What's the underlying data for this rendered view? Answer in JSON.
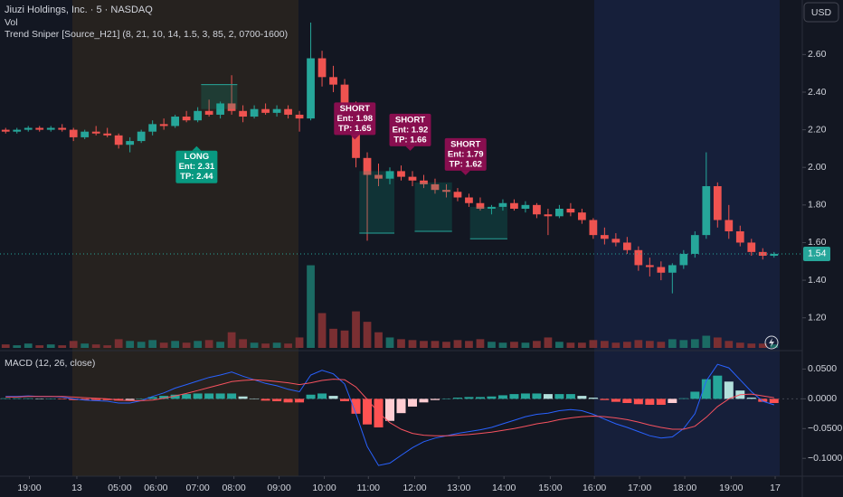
{
  "chart_data": [
    {
      "type": "candlestick",
      "title": "Jiuzi Holdings, Inc. · 5 · NASDAQ",
      "legend_texts": [
        "Vol",
        "Trend Sniper [Source_H21] (8, 21, 10, 14, 1.5, 3, 85, 2, 0700-1600)"
      ],
      "currency": "USD",
      "up_color": "#26a69a",
      "down_color": "#ef5350",
      "xlim": [
        -0.5,
        70.5
      ],
      "xticks": [
        {
          "value": 2.1,
          "label": "19:00"
        },
        {
          "value": 6.3,
          "label": "13"
        },
        {
          "value": 10.1,
          "label": "05:00"
        },
        {
          "value": 13.3,
          "label": "06:00"
        },
        {
          "value": 17.0,
          "label": "07:00"
        },
        {
          "value": 20.2,
          "label": "08:00"
        },
        {
          "value": 24.2,
          "label": "09:00"
        },
        {
          "value": 28.2,
          "label": "10:00"
        },
        {
          "value": 32.1,
          "label": "11:00"
        },
        {
          "value": 36.2,
          "label": "12:00"
        },
        {
          "value": 40.1,
          "label": "13:00"
        },
        {
          "value": 44.1,
          "label": "14:00"
        },
        {
          "value": 48.2,
          "label": "15:00"
        },
        {
          "value": 52.1,
          "label": "16:00"
        },
        {
          "value": 56.1,
          "label": "17:00"
        },
        {
          "value": 60.1,
          "label": "18:00"
        },
        {
          "value": 64.2,
          "label": "19:00"
        },
        {
          "value": 68.1,
          "label": "17"
        }
      ],
      "ylim": [
        1.04,
        2.89
      ],
      "yticks": [
        {
          "value": 2.6,
          "label": "2.60"
        },
        {
          "value": 2.4,
          "label": "2.40"
        },
        {
          "value": 2.2,
          "label": "2.20"
        },
        {
          "value": 2.0,
          "label": "2.00"
        },
        {
          "value": 1.8,
          "label": "1.80"
        },
        {
          "value": 1.6,
          "label": "1.60"
        },
        {
          "value": 1.4,
          "label": "1.40"
        },
        {
          "value": 1.2,
          "label": "1.20"
        }
      ],
      "open": [
        2.2,
        2.19,
        2.2,
        2.21,
        2.2,
        2.21,
        2.2,
        2.16,
        2.19,
        2.18,
        2.17,
        2.12,
        2.14,
        2.19,
        2.23,
        2.22,
        2.27,
        2.25,
        2.3,
        2.28,
        2.34,
        2.3,
        2.27,
        2.31,
        2.29,
        2.31,
        2.28,
        2.26,
        2.58,
        2.48,
        2.44,
        2.33,
        2.05,
        1.96,
        1.94,
        1.98,
        1.95,
        1.93,
        1.91,
        1.88,
        1.87,
        1.84,
        1.81,
        1.78,
        1.79,
        1.81,
        1.78,
        1.8,
        1.75,
        1.74,
        1.78,
        1.76,
        1.72,
        1.64,
        1.62,
        1.6,
        1.56,
        1.48,
        1.47,
        1.44,
        1.48,
        1.54,
        1.64,
        1.9,
        1.72,
        1.66,
        1.6,
        1.55,
        1.53
      ],
      "high": [
        2.21,
        2.21,
        2.22,
        2.22,
        2.22,
        2.23,
        2.21,
        2.2,
        2.22,
        2.21,
        2.18,
        2.16,
        2.2,
        2.25,
        2.26,
        2.28,
        2.3,
        2.32,
        2.36,
        2.35,
        2.49,
        2.33,
        2.33,
        2.34,
        2.33,
        2.33,
        2.3,
        2.77,
        2.62,
        2.54,
        2.47,
        2.35,
        2.08,
        2.02,
        2.0,
        2.01,
        1.98,
        1.96,
        1.94,
        1.91,
        1.89,
        1.86,
        1.84,
        1.8,
        1.83,
        1.83,
        1.82,
        1.81,
        1.78,
        1.8,
        1.81,
        1.78,
        1.73,
        1.68,
        1.65,
        1.63,
        1.58,
        1.52,
        1.5,
        1.49,
        1.56,
        1.66,
        2.08,
        1.92,
        1.8,
        1.69,
        1.62,
        1.57,
        1.55
      ],
      "low": [
        2.18,
        2.18,
        2.19,
        2.19,
        2.19,
        2.19,
        2.14,
        2.15,
        2.17,
        2.16,
        2.1,
        2.08,
        2.13,
        2.17,
        2.2,
        2.21,
        2.24,
        2.24,
        2.27,
        2.26,
        2.28,
        2.24,
        2.26,
        2.28,
        2.27,
        2.26,
        2.19,
        2.25,
        2.43,
        2.4,
        2.3,
        2.0,
        1.61,
        1.9,
        1.91,
        1.93,
        1.9,
        1.89,
        1.86,
        1.84,
        1.82,
        1.79,
        1.77,
        1.75,
        1.77,
        1.77,
        1.76,
        1.73,
        1.64,
        1.73,
        1.74,
        1.7,
        1.62,
        1.59,
        1.58,
        1.54,
        1.45,
        1.42,
        1.4,
        1.33,
        1.46,
        1.52,
        1.62,
        1.68,
        1.62,
        1.58,
        1.53,
        1.51,
        1.52
      ],
      "close": [
        2.19,
        2.2,
        2.21,
        2.2,
        2.21,
        2.2,
        2.16,
        2.19,
        2.18,
        2.17,
        2.12,
        2.14,
        2.19,
        2.23,
        2.22,
        2.27,
        2.25,
        2.3,
        2.28,
        2.34,
        2.3,
        2.27,
        2.31,
        2.29,
        2.31,
        2.28,
        2.26,
        2.58,
        2.48,
        2.44,
        2.33,
        2.05,
        1.96,
        1.94,
        1.98,
        1.95,
        1.93,
        1.91,
        1.88,
        1.87,
        1.84,
        1.81,
        1.78,
        1.79,
        1.81,
        1.78,
        1.8,
        1.75,
        1.74,
        1.78,
        1.76,
        1.72,
        1.64,
        1.62,
        1.6,
        1.56,
        1.48,
        1.47,
        1.44,
        1.48,
        1.54,
        1.64,
        1.9,
        1.72,
        1.66,
        1.6,
        1.55,
        1.53,
        1.54
      ],
      "signals": [
        {
          "label": "LONG",
          "entry_text": "Ent: 2.31",
          "tp_text": "TP: 2.44",
          "entry": 2.31,
          "tp": 2.44,
          "x": [
            17.3,
            20.5
          ],
          "color": "#089981"
        },
        {
          "label": "SHORT",
          "entry_text": "Ent: 1.98",
          "tp_text": "TP: 1.65",
          "entry": 1.98,
          "tp": 1.65,
          "x": [
            31.3,
            34.4
          ],
          "color": "#880e4f"
        },
        {
          "label": "SHORT",
          "entry_text": "Ent: 1.92",
          "tp_text": "TP: 1.66",
          "entry": 1.92,
          "tp": 1.66,
          "x": [
            36.2,
            39.5
          ],
          "color": "#880e4f"
        },
        {
          "label": "SHORT",
          "entry_text": "Ent: 1.79",
          "tp_text": "TP: 1.62",
          "entry": 1.79,
          "tp": 1.62,
          "x": [
            41.1,
            44.4
          ],
          "color": "#880e4f"
        }
      ]
    },
    {
      "type": "bar",
      "up_color": "#1b6b64",
      "down_color": "#7a2f32",
      "ylim": [
        0,
        400
      ],
      "values": [
        4,
        3,
        5,
        3,
        4,
        3,
        8,
        5,
        4,
        3,
        10,
        8,
        7,
        9,
        6,
        8,
        6,
        8,
        9,
        7,
        18,
        10,
        6,
        5,
        6,
        5,
        12,
        95,
        40,
        22,
        20,
        42,
        30,
        18,
        12,
        10,
        9,
        8,
        8,
        7,
        9,
        8,
        10,
        7,
        6,
        7,
        6,
        8,
        12,
        7,
        6,
        6,
        9,
        8,
        6,
        7,
        9,
        8,
        7,
        10,
        9,
        10,
        14,
        12,
        8,
        6,
        5,
        5,
        4
      ]
    },
    {
      "type": "macd",
      "title": "MACD (12, 26, close)",
      "macd_color": "#2962ff",
      "signal_color": "#f7525f",
      "hist_colors": {
        "pos_up": "#26a69a",
        "pos_down": "#b2dfdb",
        "neg_down": "#ff5252",
        "neg_up": "#ffcdd2"
      },
      "ylim": [
        -0.13,
        0.078
      ],
      "yticks": [
        {
          "value": 0.05,
          "label": "0.0500"
        },
        {
          "value": 0,
          "label": "0.0000"
        },
        {
          "value": -0.05,
          "label": "−0.0500"
        },
        {
          "value": -0.1,
          "label": "−0.1000"
        }
      ],
      "histogram": [
        0.001,
        0.001,
        0.001,
        0.0,
        0.0,
        -0.001,
        -0.002,
        -0.002,
        -0.002,
        -0.002,
        -0.003,
        -0.002,
        0.0,
        0.003,
        0.005,
        0.007,
        0.008,
        0.009,
        0.009,
        0.009,
        0.009,
        0.004,
        0.0,
        -0.003,
        -0.004,
        -0.006,
        -0.006,
        0.007,
        0.009,
        0.005,
        -0.004,
        -0.025,
        -0.043,
        -0.048,
        -0.037,
        -0.024,
        -0.013,
        -0.006,
        -0.002,
        0.0,
        0.002,
        0.003,
        0.003,
        0.004,
        0.006,
        0.008,
        0.009,
        0.009,
        0.008,
        0.008,
        0.008,
        0.005,
        0.002,
        -0.002,
        -0.005,
        -0.007,
        -0.009,
        -0.01,
        -0.01,
        -0.007,
        0.001,
        0.012,
        0.033,
        0.039,
        0.029,
        0.014,
        0.002,
        -0.005,
        -0.007
      ],
      "macd": [
        0.004,
        0.004,
        0.005,
        0.004,
        0.004,
        0.003,
        0.0,
        -0.002,
        -0.003,
        -0.004,
        -0.007,
        -0.007,
        -0.003,
        0.004,
        0.01,
        0.018,
        0.024,
        0.03,
        0.036,
        0.04,
        0.045,
        0.038,
        0.032,
        0.026,
        0.022,
        0.016,
        0.012,
        0.04,
        0.048,
        0.042,
        0.025,
        -0.025,
        -0.08,
        -0.112,
        -0.108,
        -0.095,
        -0.082,
        -0.072,
        -0.066,
        -0.062,
        -0.058,
        -0.055,
        -0.052,
        -0.048,
        -0.042,
        -0.036,
        -0.03,
        -0.026,
        -0.024,
        -0.02,
        -0.018,
        -0.02,
        -0.026,
        -0.034,
        -0.042,
        -0.048,
        -0.055,
        -0.062,
        -0.066,
        -0.064,
        -0.05,
        -0.025,
        0.03,
        0.058,
        0.052,
        0.032,
        0.012,
        -0.004,
        -0.01
      ],
      "signal": [
        0.003,
        0.003,
        0.004,
        0.004,
        0.004,
        0.004,
        0.003,
        0.002,
        0.001,
        0.0,
        -0.002,
        -0.003,
        -0.003,
        -0.002,
        0.001,
        0.005,
        0.009,
        0.014,
        0.019,
        0.024,
        0.029,
        0.031,
        0.032,
        0.031,
        0.029,
        0.027,
        0.024,
        0.027,
        0.031,
        0.033,
        0.032,
        0.02,
        -0.001,
        -0.023,
        -0.04,
        -0.051,
        -0.058,
        -0.061,
        -0.062,
        -0.062,
        -0.061,
        -0.06,
        -0.058,
        -0.056,
        -0.053,
        -0.05,
        -0.046,
        -0.042,
        -0.039,
        -0.035,
        -0.032,
        -0.03,
        -0.029,
        -0.03,
        -0.032,
        -0.035,
        -0.039,
        -0.044,
        -0.048,
        -0.051,
        -0.051,
        -0.046,
        -0.031,
        -0.013,
        0.0,
        0.007,
        0.008,
        0.005,
        0.002
      ]
    }
  ]
}
